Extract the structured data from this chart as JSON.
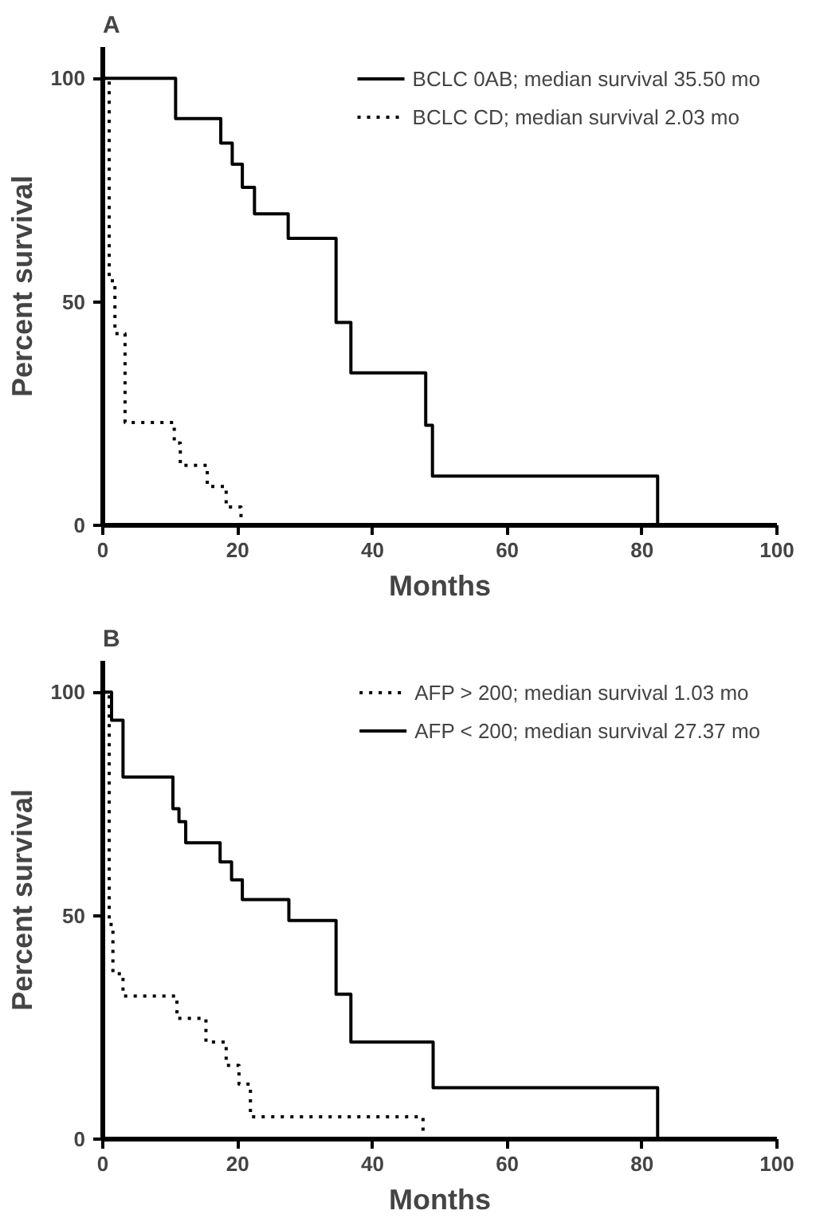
{
  "chart_data": [
    {
      "type": "step",
      "title": "A",
      "xlabel": "Months",
      "ylabel": "Percent survival",
      "xlim": [
        0,
        100
      ],
      "ylim": [
        0,
        107
      ],
      "xticks": [
        0,
        20,
        40,
        60,
        80,
        100
      ],
      "yticks": [
        0,
        50,
        100
      ],
      "grid": false,
      "legend": "top right",
      "marker": "none",
      "series": [
        {
          "name": "BCLC 0AB; median survival 35.50 mo",
          "color": "#000000",
          "line_style": "solid",
          "x": [
            0,
            10.8,
            17.5,
            19.2,
            20.7,
            22.5,
            27.5,
            34.6,
            36.8,
            47.9,
            48.9,
            82.3
          ],
          "values": [
            100,
            91,
            85.5,
            80.8,
            75.6,
            69.7,
            64.2,
            45.4,
            34.1,
            22.4,
            11,
            0
          ]
        },
        {
          "name": "BCLC CD; median survival 2.03 mo",
          "color": "#000000",
          "line_style": "dotted",
          "x": [
            0,
            0.95,
            1.8,
            3.3,
            10.6,
            11.5,
            15.5,
            18.3,
            20.5
          ],
          "values": [
            100,
            54.7,
            42.9,
            23,
            18.4,
            13.4,
            8.7,
            4.1,
            0
          ]
        }
      ]
    },
    {
      "type": "step",
      "title": "B",
      "xlabel": "Months",
      "ylabel": "Percent survival",
      "xlim": [
        0,
        100
      ],
      "ylim": [
        0,
        107
      ],
      "xticks": [
        0,
        20,
        40,
        60,
        80,
        100
      ],
      "yticks": [
        0,
        50,
        100
      ],
      "grid": false,
      "legend": "top right",
      "marker": "none",
      "series": [
        {
          "name": "AFP > 200; median survival 1.03 mo",
          "color": "#000000",
          "line_style": "dotted",
          "x": [
            0,
            0.95,
            1.5,
            3.0,
            11.0,
            15.3,
            18.3,
            20.2,
            21.9,
            47.5
          ],
          "values": [
            100,
            48,
            37,
            32,
            27,
            21.7,
            16.5,
            12.3,
            5,
            0
          ]
        },
        {
          "name": "AFP < 200; median survival 27.37 mo",
          "color": "#000000",
          "line_style": "solid",
          "x": [
            0,
            1.3,
            3.0,
            10.4,
            11.3,
            12.3,
            17.4,
            19.1,
            20.7,
            27.6,
            34.6,
            36.8,
            49.0,
            82.3
          ],
          "values": [
            100,
            93.7,
            81,
            73.9,
            71,
            66.3,
            62,
            58,
            53.6,
            48.9,
            32.4,
            21.7,
            11.5,
            0
          ]
        }
      ]
    }
  ]
}
